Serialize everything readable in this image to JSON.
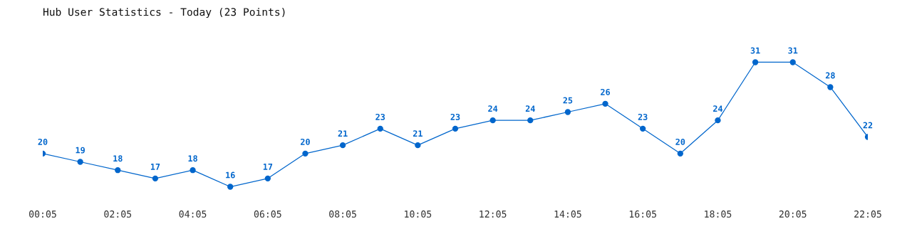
{
  "chart_data": {
    "type": "line",
    "title": "Hub User Statistics - Today (23 Points)",
    "categories": [
      "00:05",
      null,
      "02:05",
      null,
      "04:05",
      null,
      "06:05",
      null,
      "08:05",
      null,
      "10:05",
      null,
      "12:05",
      null,
      "14:05",
      null,
      "16:05",
      null,
      "18:05",
      null,
      "20:05",
      null,
      "22:05"
    ],
    "series": [
      {
        "color": "#0066cc",
        "values": [
          20,
          19,
          18,
          17,
          18,
          16,
          17,
          20,
          21,
          23,
          21,
          23,
          24,
          24,
          25,
          26,
          23,
          20,
          24,
          31,
          31,
          28,
          22
        ]
      }
    ],
    "data_labels": true,
    "marker": "circle",
    "line_style": "solid",
    "grid": false,
    "legend": false
  }
}
